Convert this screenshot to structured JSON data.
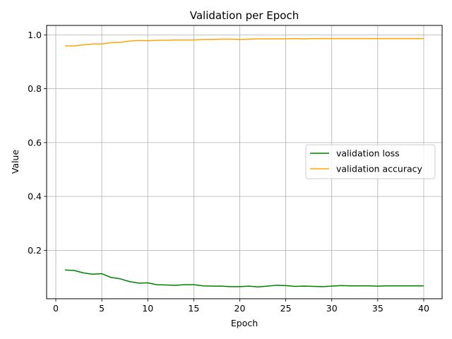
{
  "chart_data": {
    "type": "line",
    "title": "Validation per Epoch",
    "xlabel": "Epoch",
    "ylabel": "Value",
    "xlim": [
      -1,
      42
    ],
    "ylim": [
      0.02,
      1.035
    ],
    "x_ticks": [
      0,
      5,
      10,
      15,
      20,
      25,
      30,
      35,
      40
    ],
    "y_ticks": [
      0.2,
      0.4,
      0.6,
      0.8,
      1.0
    ],
    "x_tick_labels": [
      "0",
      "5",
      "10",
      "15",
      "20",
      "25",
      "30",
      "35",
      "40"
    ],
    "y_tick_labels": [
      "0.2",
      "0.4",
      "0.6",
      "0.8",
      "1.0"
    ],
    "grid": true,
    "legend_position": "center-right",
    "x": [
      1,
      2,
      3,
      4,
      5,
      6,
      7,
      8,
      9,
      10,
      11,
      12,
      13,
      14,
      15,
      16,
      17,
      18,
      19,
      20,
      21,
      22,
      23,
      24,
      25,
      26,
      27,
      28,
      29,
      30,
      31,
      32,
      33,
      34,
      35,
      36,
      37,
      38,
      39,
      40
    ],
    "series": [
      {
        "name": "validation loss",
        "color": "#008000",
        "values": [
          0.127,
          0.125,
          0.116,
          0.111,
          0.113,
          0.099,
          0.094,
          0.084,
          0.078,
          0.079,
          0.072,
          0.071,
          0.07,
          0.072,
          0.072,
          0.068,
          0.067,
          0.067,
          0.065,
          0.065,
          0.067,
          0.064,
          0.067,
          0.07,
          0.069,
          0.066,
          0.067,
          0.066,
          0.065,
          0.067,
          0.069,
          0.068,
          0.068,
          0.068,
          0.067,
          0.068,
          0.068,
          0.068,
          0.068,
          0.068
        ]
      },
      {
        "name": "validation accuracy",
        "color": "#ffa500",
        "values": [
          0.959,
          0.959,
          0.963,
          0.966,
          0.966,
          0.971,
          0.972,
          0.977,
          0.979,
          0.978,
          0.98,
          0.98,
          0.981,
          0.981,
          0.981,
          0.983,
          0.983,
          0.984,
          0.984,
          0.983,
          0.984,
          0.985,
          0.985,
          0.985,
          0.985,
          0.986,
          0.985,
          0.986,
          0.986,
          0.986,
          0.986,
          0.986,
          0.986,
          0.986,
          0.986,
          0.986,
          0.986,
          0.986,
          0.986,
          0.986
        ]
      }
    ]
  }
}
